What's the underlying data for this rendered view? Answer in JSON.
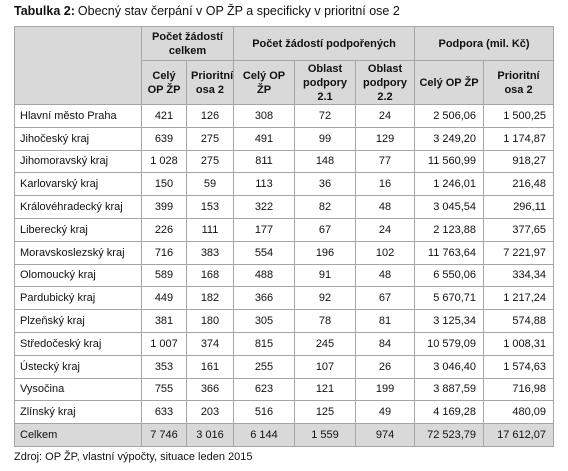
{
  "title": {
    "label": "Tabulka 2:",
    "text": "Obecný stav čerpání v OP ŽP a specificky v prioritní ose 2"
  },
  "header": {
    "groups": [
      "Počet žádostí celkem",
      "Počet žádostí podpořených",
      "Podpora (mil. Kč)"
    ],
    "columns": [
      "Celý OP ŽP",
      "Prioritní osa 2",
      "Celý OP ŽP",
      "Oblast podpory 2.1",
      "Oblast podpory 2.2",
      "Celý OP ŽP",
      "Prioritní osa 2"
    ]
  },
  "table": {
    "rows": [
      [
        "Hlavní město Praha",
        "421",
        "126",
        "308",
        "72",
        "24",
        "2 506,06",
        "1 500,25"
      ],
      [
        "Jihočeský kraj",
        "639",
        "275",
        "491",
        "99",
        "129",
        "3 249,20",
        "1 174,87"
      ],
      [
        "Jihomoravský kraj",
        "1 028",
        "275",
        "811",
        "148",
        "77",
        "11 560,99",
        "918,27"
      ],
      [
        "Karlovarský kraj",
        "150",
        "59",
        "113",
        "36",
        "16",
        "1 246,01",
        "216,48"
      ],
      [
        "Královéhradecký kraj",
        "399",
        "153",
        "322",
        "82",
        "48",
        "3 045,54",
        "296,11"
      ],
      [
        "Liberecký kraj",
        "226",
        "111",
        "177",
        "67",
        "24",
        "2 123,88",
        "377,65"
      ],
      [
        "Moravskoslezský kraj",
        "716",
        "383",
        "554",
        "196",
        "102",
        "11 763,64",
        "7 221,97"
      ],
      [
        "Olomoucký kraj",
        "589",
        "168",
        "488",
        "91",
        "48",
        "6 550,06",
        "334,34"
      ],
      [
        "Pardubický kraj",
        "449",
        "182",
        "366",
        "92",
        "67",
        "5 670,71",
        "1 217,24"
      ],
      [
        "Plzeňský kraj",
        "381",
        "180",
        "305",
        "78",
        "81",
        "3 125,34",
        "574,88"
      ],
      [
        "Středočeský kraj",
        "1 007",
        "374",
        "815",
        "245",
        "84",
        "10 579,09",
        "1 008,31"
      ],
      [
        "Ústecký kraj",
        "353",
        "161",
        "255",
        "107",
        "26",
        "3 046,40",
        "1 574,63"
      ],
      [
        "Vysočina",
        "755",
        "366",
        "623",
        "121",
        "199",
        "3 887,59",
        "716,98"
      ],
      [
        "Zlínský kraj",
        "633",
        "203",
        "516",
        "125",
        "49",
        "4 169,28",
        "480,09"
      ]
    ],
    "total": [
      "Celkem",
      "7 746",
      "3 016",
      "6 144",
      "1 559",
      "974",
      "72 523,79",
      "17 612,07"
    ]
  },
  "source": "Zdroj: OP ŽP, vlastní výpočty, situace leden 2015"
}
